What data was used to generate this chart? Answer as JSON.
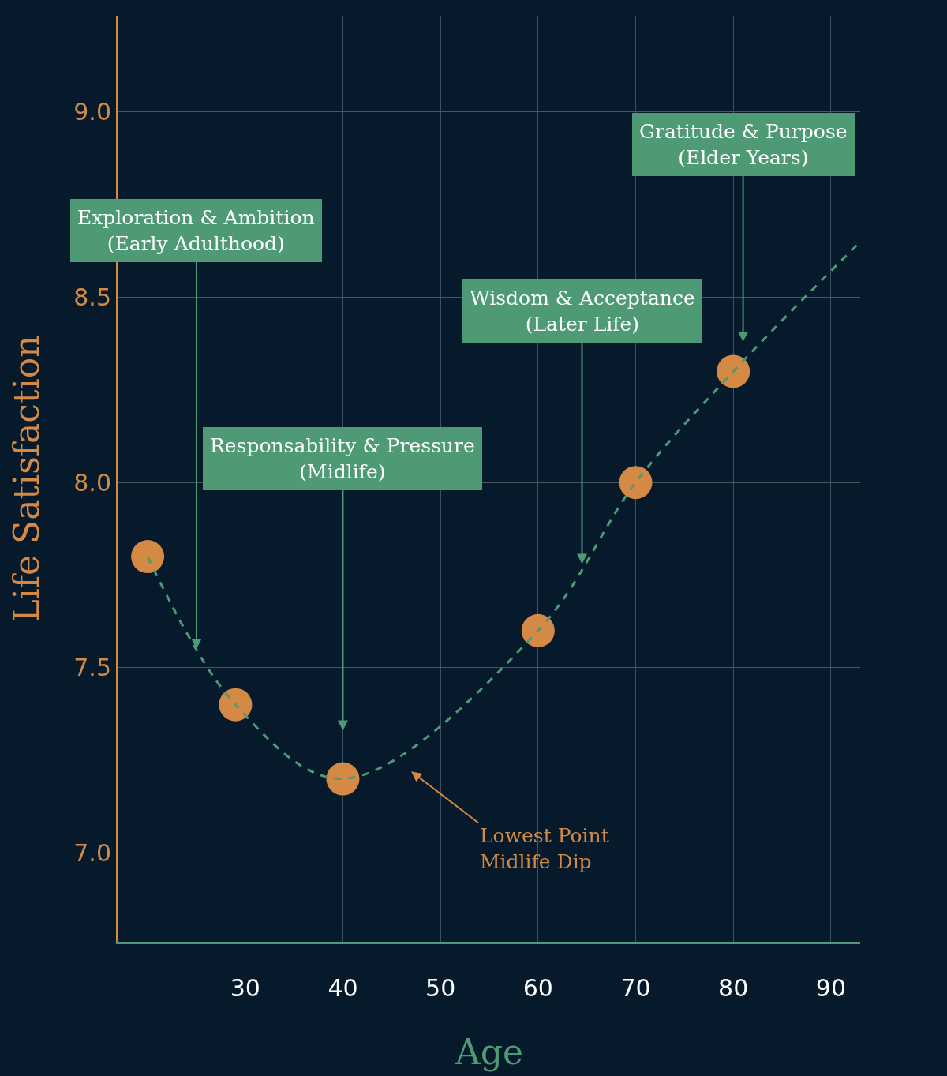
{
  "chart_data": {
    "type": "scatter",
    "xlabel": "Age",
    "ylabel": "Life Satisfaction",
    "xlim": [
      17,
      93
    ],
    "ylim": [
      6.76,
      9.26
    ],
    "xticks": [
      30,
      40,
      50,
      60,
      70,
      80,
      90
    ],
    "yticks": [
      {
        "value": 7.0,
        "label": "7.0"
      },
      {
        "value": 7.5,
        "label": "7.5"
      },
      {
        "value": 8.0,
        "label": "8.0"
      },
      {
        "value": 8.5,
        "label": "8.5"
      },
      {
        "value": 9.0,
        "label": "9.0"
      }
    ],
    "grid": true,
    "series": [
      {
        "color": "#d48a45",
        "marker": "circle",
        "x": [
          20,
          29,
          40,
          60,
          70,
          80
        ],
        "values": [
          7.8,
          7.4,
          7.2,
          7.6,
          8.0,
          8.3
        ]
      },
      {
        "type": "line",
        "color": "#4e9a74",
        "line_style": "dashed",
        "marker": "none",
        "x": [
          20,
          29,
          40,
          60,
          70,
          80,
          93
        ],
        "values": [
          7.8,
          7.4,
          7.2,
          7.6,
          8.0,
          8.3,
          8.65
        ]
      }
    ],
    "annotations": [
      "Exploration & Ambition\n(Early Adulthood)",
      "Responsability & Pressure\n(Midlife)",
      {
        "text": "Wisdom & Acceptance\n(Later Life)",
        "x": 64.5,
        "y": 7.78
      },
      "Gratitude & Purpose\n(Elder Years)",
      "Lowest Point\nMidlife Dip"
    ]
  }
}
